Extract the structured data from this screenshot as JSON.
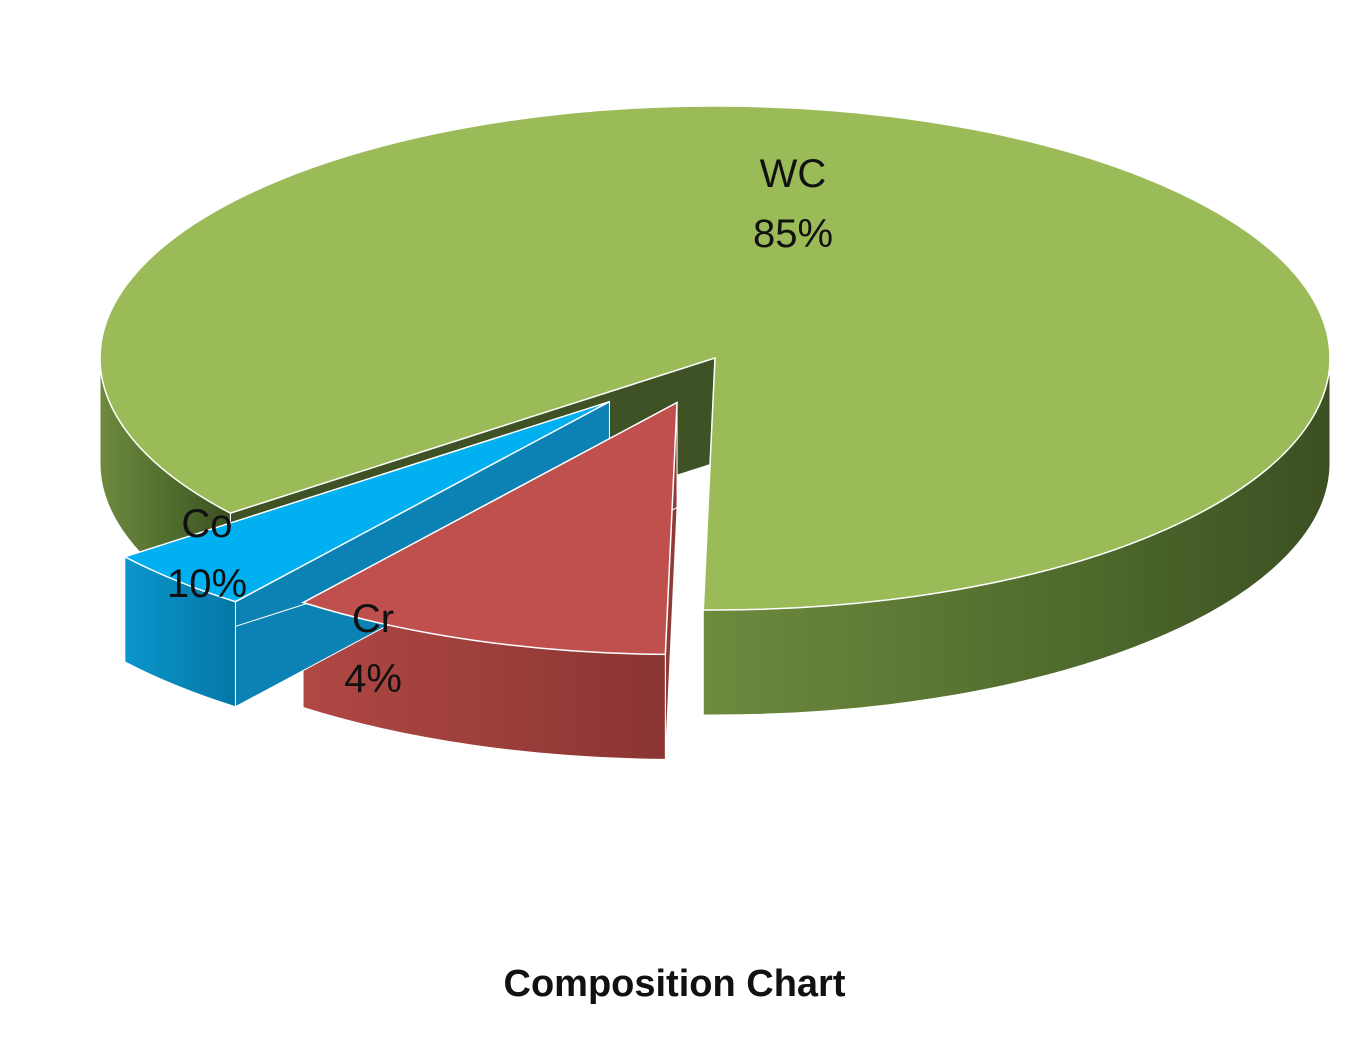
{
  "chart_data": {
    "type": "pie",
    "style": "3d-exploded",
    "title": "Composition Chart",
    "slices": [
      {
        "label": "WC",
        "value": 85,
        "value_label": "85%",
        "color": "#9BBB59"
      },
      {
        "label": "Co",
        "value": 10,
        "value_label": "10%",
        "color": "#C0504D"
      },
      {
        "label": "Cr",
        "value": 4,
        "value_label": "4%",
        "color": "#00B0F0"
      }
    ]
  }
}
